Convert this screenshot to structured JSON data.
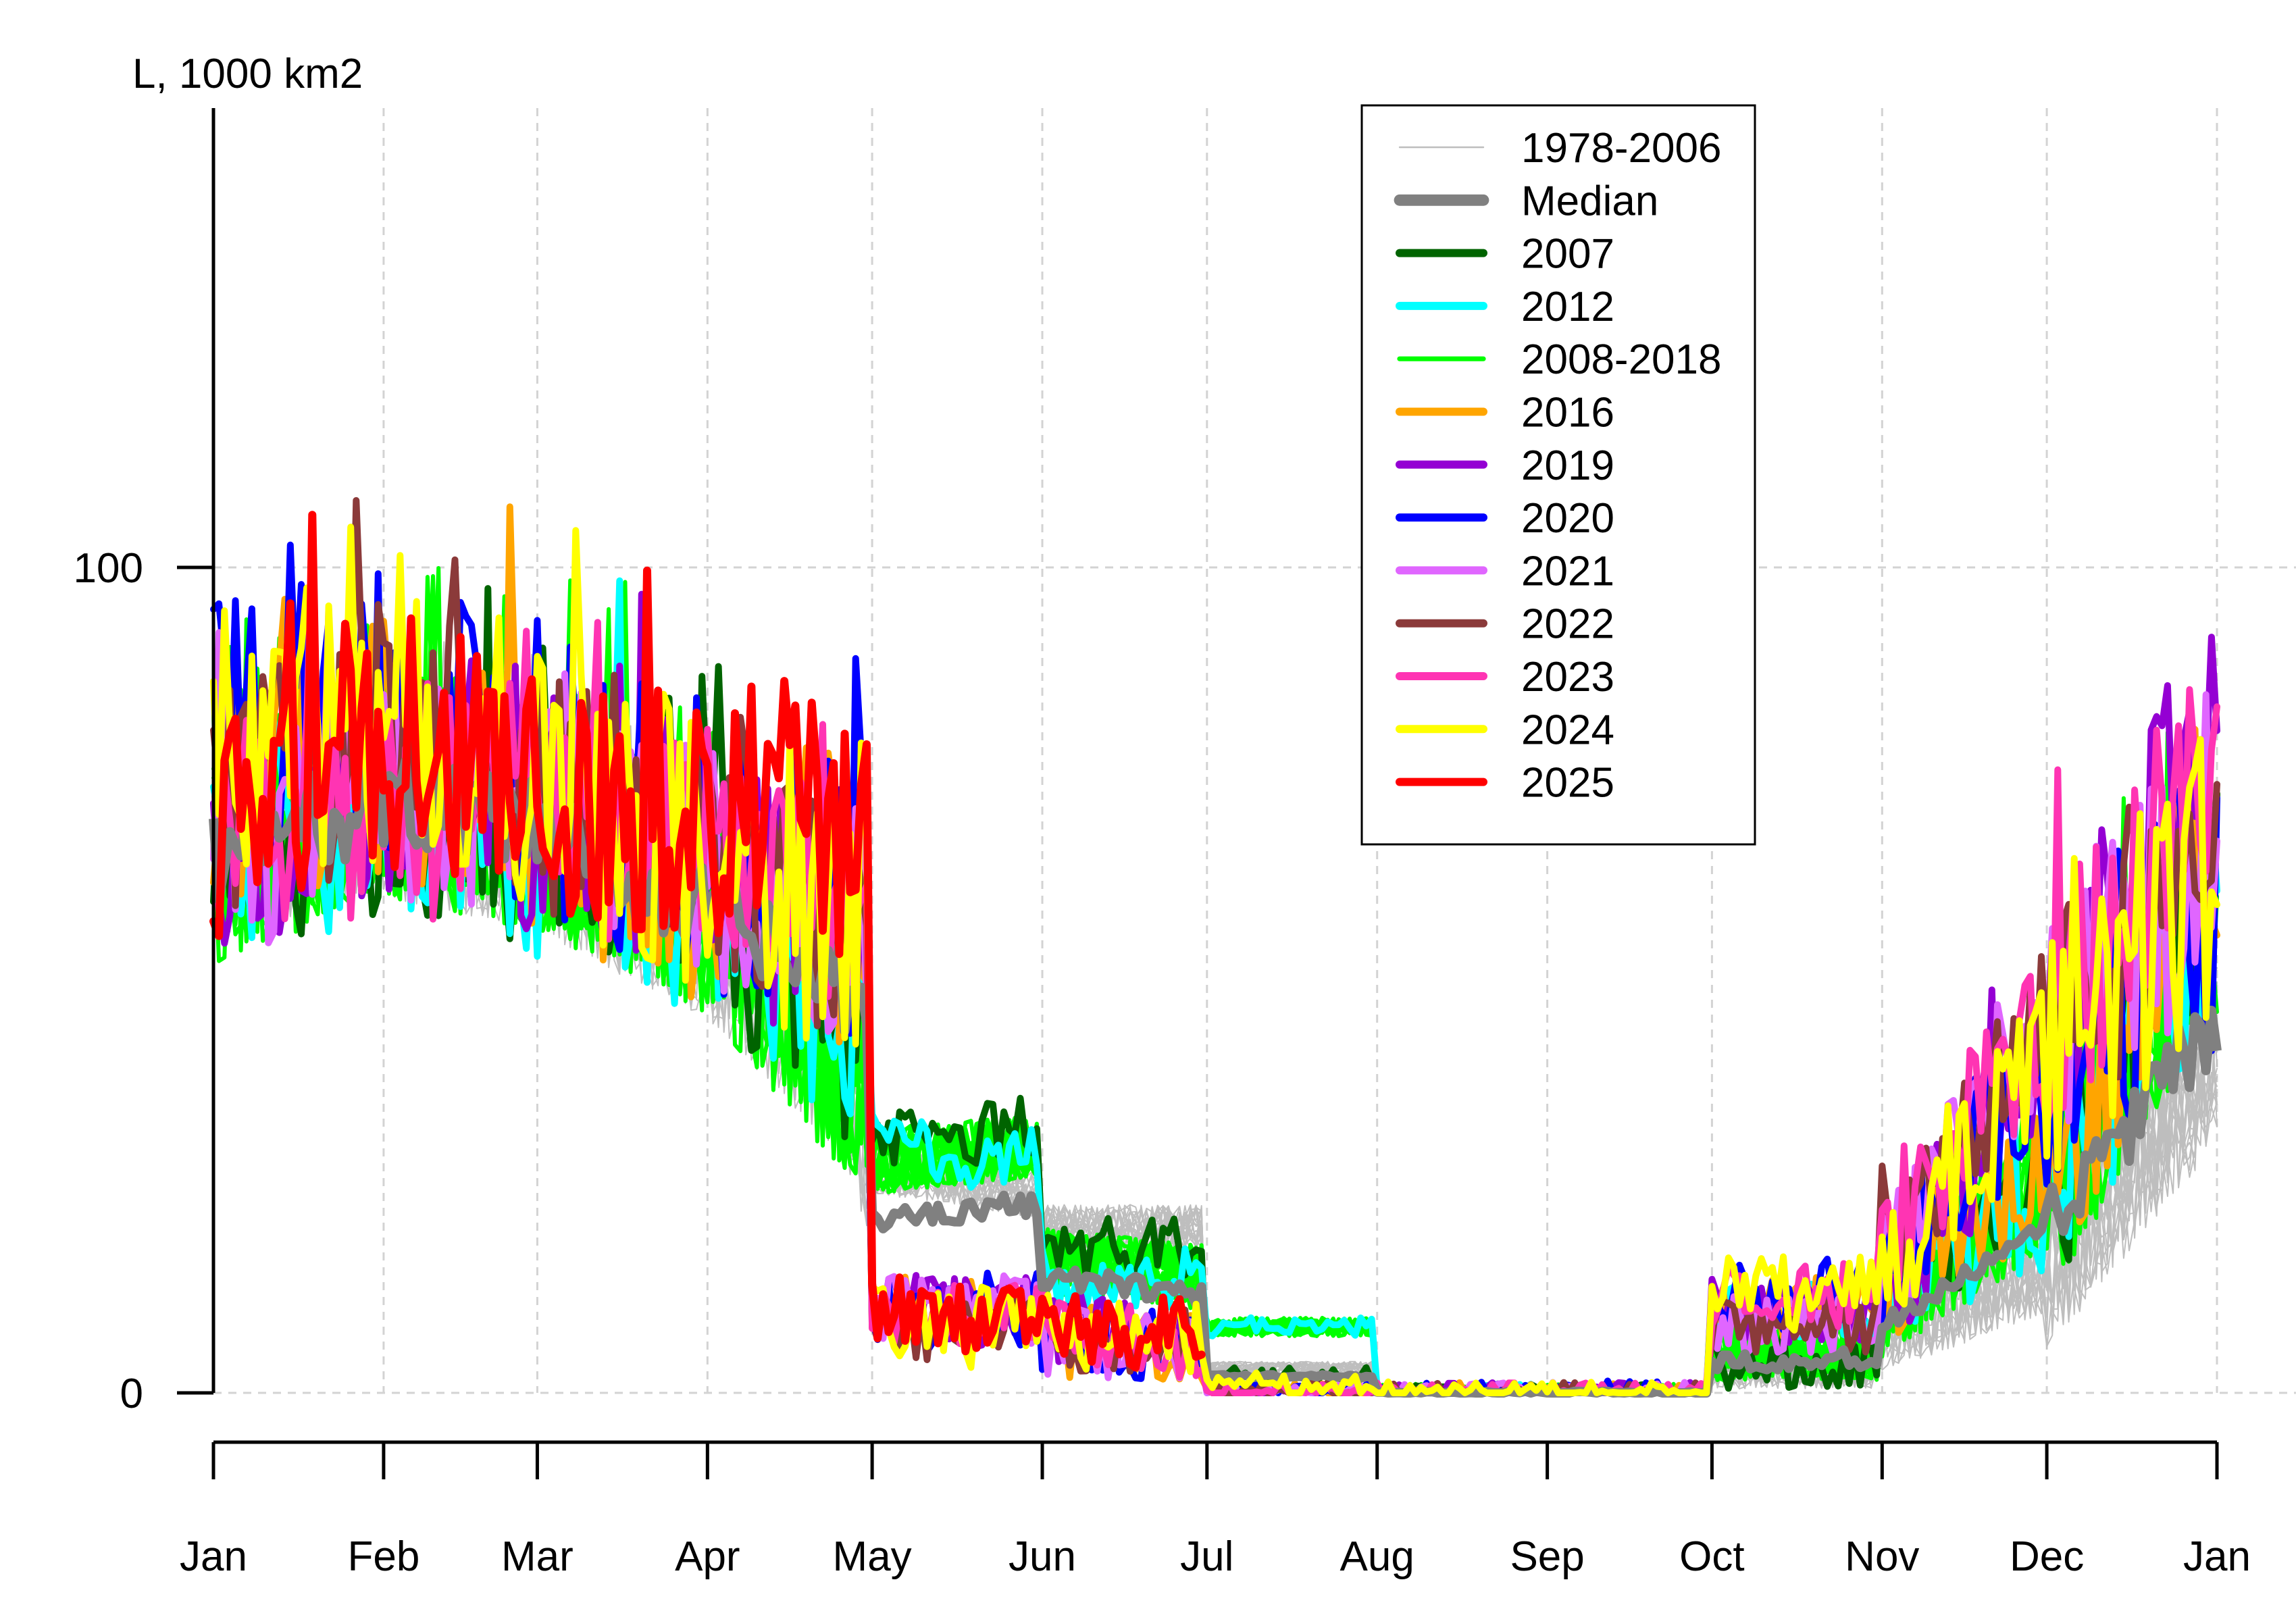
{
  "chart_data": {
    "type": "line",
    "ylabel": "L, 1000 km2",
    "xlim": [
      0,
      365
    ],
    "ylim": [
      -5,
      155
    ],
    "grid": true,
    "x_ticks": [
      {
        "label": "Jan",
        "day": 0
      },
      {
        "label": "Feb",
        "day": 31
      },
      {
        "label": "Mar",
        "day": 59
      },
      {
        "label": "Apr",
        "day": 90
      },
      {
        "label": "May",
        "day": 120
      },
      {
        "label": "Jun",
        "day": 151
      },
      {
        "label": "Jul",
        "day": 181
      },
      {
        "label": "Aug",
        "day": 212
      },
      {
        "label": "Sep",
        "day": 243
      },
      {
        "label": "Oct",
        "day": 273
      },
      {
        "label": "Nov",
        "day": 304
      },
      {
        "label": "Dec",
        "day": 334
      },
      {
        "label": "Jan",
        "day": 365
      }
    ],
    "y_ticks": [
      0,
      100
    ],
    "legend_position": "top-center",
    "legend": [
      {
        "label": "1978-2006",
        "color": "#bebebe",
        "width": 2
      },
      {
        "label": "Median",
        "color": "#808080",
        "width": 14
      },
      {
        "label": "2007",
        "color": "#006400",
        "width": 10
      },
      {
        "label": "2012",
        "color": "#00ffff",
        "width": 10
      },
      {
        "label": "2008-2018",
        "color": "#00ff00",
        "width": 6
      },
      {
        "label": "2016",
        "color": "#ffa500",
        "width": 10
      },
      {
        "label": "2019",
        "color": "#9400d3",
        "width": 10
      },
      {
        "label": "2020",
        "color": "#0000ff",
        "width": 10
      },
      {
        "label": "2021",
        "color": "#e066ff",
        "width": 10
      },
      {
        "label": "2022",
        "color": "#8b3a3a",
        "width": 10
      },
      {
        "label": "2023",
        "color": "#ff34b3",
        "width": 10
      },
      {
        "label": "2024",
        "color": "#ffff00",
        "width": 10
      },
      {
        "label": "2025",
        "color": "#ff0000",
        "width": 10
      }
    ],
    "series": [
      {
        "legend": "1978-2006",
        "color": "#bebebe",
        "width": 2,
        "copies": 20,
        "profile": [
          [
            0,
            65
          ],
          [
            31,
            70
          ],
          [
            59,
            66
          ],
          [
            90,
            55
          ],
          [
            115,
            38
          ],
          [
            119,
            30
          ],
          [
            120,
            27
          ],
          [
            150,
            24
          ],
          [
            151,
            20
          ],
          [
            180,
            20
          ],
          [
            181,
            3
          ],
          [
            211,
            3
          ],
          [
            212,
            0
          ],
          [
            272,
            0
          ],
          [
            273,
            3
          ],
          [
            303,
            3
          ],
          [
            304,
            8
          ],
          [
            334,
            15
          ],
          [
            365,
            40
          ]
        ],
        "noise": 10
      },
      {
        "legend": "2008-2018",
        "color": "#00ff00",
        "width": 6,
        "copies": 11,
        "profile": [
          [
            0,
            66
          ],
          [
            31,
            74
          ],
          [
            59,
            70
          ],
          [
            90,
            60
          ],
          [
            115,
            40
          ],
          [
            119,
            38
          ],
          [
            120,
            28
          ],
          [
            150,
            30
          ],
          [
            151,
            16
          ],
          [
            180,
            14
          ],
          [
            181,
            8
          ],
          [
            211,
            8
          ],
          [
            212,
            0
          ],
          [
            272,
            0
          ],
          [
            273,
            5
          ],
          [
            303,
            5
          ],
          [
            304,
            12
          ],
          [
            334,
            25
          ],
          [
            365,
            60
          ]
        ],
        "noise": 14
      },
      {
        "legend": "2007",
        "color": "#006400",
        "width": 10,
        "profile": [
          [
            0,
            66
          ],
          [
            31,
            72
          ],
          [
            59,
            68
          ],
          [
            90,
            60
          ],
          [
            115,
            45
          ],
          [
            119,
            42
          ],
          [
            120,
            30
          ],
          [
            150,
            32
          ],
          [
            151,
            17
          ],
          [
            180,
            18
          ],
          [
            181,
            2
          ],
          [
            211,
            2
          ],
          [
            212,
            0
          ],
          [
            272,
            0
          ],
          [
            273,
            4
          ],
          [
            303,
            4
          ],
          [
            304,
            16
          ],
          [
            334,
            25
          ],
          [
            365,
            60
          ]
        ],
        "noise": 14
      },
      {
        "legend": "2012",
        "color": "#00ffff",
        "width": 10,
        "profile": [
          [
            0,
            68
          ],
          [
            31,
            70
          ],
          [
            59,
            66
          ],
          [
            90,
            60
          ],
          [
            115,
            46
          ],
          [
            119,
            44
          ],
          [
            120,
            30
          ],
          [
            150,
            28
          ],
          [
            151,
            14
          ],
          [
            180,
            14
          ],
          [
            181,
            8
          ],
          [
            211,
            8
          ],
          [
            212,
            0
          ],
          [
            272,
            0
          ],
          [
            273,
            10
          ],
          [
            303,
            10
          ],
          [
            304,
            14
          ],
          [
            334,
            22
          ],
          [
            365,
            60
          ]
        ],
        "noise": 14
      },
      {
        "legend": "2016",
        "color": "#ffa500",
        "width": 10,
        "profile": [
          [
            0,
            74
          ],
          [
            31,
            78
          ],
          [
            59,
            72
          ],
          [
            90,
            62
          ],
          [
            115,
            55
          ],
          [
            119,
            52
          ],
          [
            120,
            10
          ],
          [
            150,
            10
          ],
          [
            151,
            6
          ],
          [
            180,
            6
          ],
          [
            181,
            0
          ],
          [
            211,
            0
          ],
          [
            212,
            0
          ],
          [
            272,
            0
          ],
          [
            273,
            10
          ],
          [
            303,
            10
          ],
          [
            304,
            14
          ],
          [
            334,
            28
          ],
          [
            365,
            70
          ]
        ],
        "noise": 16
      },
      {
        "legend": "2019",
        "color": "#9400d3",
        "width": 10,
        "profile": [
          [
            0,
            70
          ],
          [
            31,
            74
          ],
          [
            59,
            72
          ],
          [
            90,
            65
          ],
          [
            115,
            55
          ],
          [
            119,
            52
          ],
          [
            120,
            10
          ],
          [
            150,
            10
          ],
          [
            151,
            8
          ],
          [
            180,
            6
          ],
          [
            181,
            0
          ],
          [
            211,
            0
          ],
          [
            212,
            0
          ],
          [
            272,
            0
          ],
          [
            273,
            10
          ],
          [
            303,
            10
          ],
          [
            304,
            12
          ],
          [
            334,
            40
          ],
          [
            365,
            85
          ]
        ],
        "noise": 16
      },
      {
        "legend": "2020",
        "color": "#0000ff",
        "width": 10,
        "profile": [
          [
            0,
            78
          ],
          [
            31,
            84
          ],
          [
            59,
            76
          ],
          [
            90,
            66
          ],
          [
            115,
            58
          ],
          [
            119,
            62
          ],
          [
            120,
            10
          ],
          [
            150,
            10
          ],
          [
            151,
            6
          ],
          [
            180,
            6
          ],
          [
            181,
            0
          ],
          [
            211,
            0
          ],
          [
            212,
            0
          ],
          [
            272,
            0
          ],
          [
            273,
            12
          ],
          [
            303,
            12
          ],
          [
            304,
            18
          ],
          [
            334,
            40
          ],
          [
            365,
            60
          ]
        ],
        "noise": 18
      },
      {
        "legend": "2021",
        "color": "#e066ff",
        "width": 10,
        "profile": [
          [
            0,
            68
          ],
          [
            31,
            75
          ],
          [
            59,
            74
          ],
          [
            90,
            62
          ],
          [
            115,
            58
          ],
          [
            119,
            62
          ],
          [
            120,
            10
          ],
          [
            150,
            10
          ],
          [
            151,
            6
          ],
          [
            180,
            6
          ],
          [
            181,
            0
          ],
          [
            211,
            0
          ],
          [
            212,
            0
          ],
          [
            272,
            0
          ],
          [
            273,
            8
          ],
          [
            303,
            8
          ],
          [
            304,
            14
          ],
          [
            334,
            45
          ],
          [
            365,
            65
          ]
        ],
        "noise": 16
      },
      {
        "legend": "2022",
        "color": "#8b3a3a",
        "width": 10,
        "profile": [
          [
            0,
            70
          ],
          [
            31,
            80
          ],
          [
            59,
            74
          ],
          [
            90,
            64
          ],
          [
            115,
            55
          ],
          [
            119,
            55
          ],
          [
            120,
            8
          ],
          [
            150,
            8
          ],
          [
            151,
            6
          ],
          [
            180,
            6
          ],
          [
            181,
            0
          ],
          [
            211,
            0
          ],
          [
            212,
            0
          ],
          [
            272,
            0
          ],
          [
            273,
            8
          ],
          [
            303,
            8
          ],
          [
            304,
            18
          ],
          [
            334,
            45
          ],
          [
            365,
            60
          ]
        ],
        "noise": 16
      },
      {
        "legend": "2023",
        "color": "#ff34b3",
        "width": 10,
        "profile": [
          [
            0,
            66
          ],
          [
            31,
            74
          ],
          [
            59,
            72
          ],
          [
            90,
            66
          ],
          [
            115,
            62
          ],
          [
            119,
            70
          ],
          [
            120,
            10
          ],
          [
            150,
            10
          ],
          [
            151,
            8
          ],
          [
            180,
            6
          ],
          [
            181,
            0
          ],
          [
            211,
            0
          ],
          [
            212,
            0
          ],
          [
            272,
            0
          ],
          [
            273,
            12
          ],
          [
            303,
            12
          ],
          [
            304,
            18
          ],
          [
            334,
            45
          ],
          [
            365,
            75
          ]
        ],
        "noise": 16
      },
      {
        "legend": "2024",
        "color": "#ffff00",
        "width": 10,
        "profile": [
          [
            0,
            80
          ],
          [
            31,
            82
          ],
          [
            59,
            74
          ],
          [
            90,
            66
          ],
          [
            115,
            58
          ],
          [
            119,
            62
          ],
          [
            120,
            8
          ],
          [
            150,
            8
          ],
          [
            151,
            8
          ],
          [
            180,
            6
          ],
          [
            181,
            1
          ],
          [
            211,
            1
          ],
          [
            212,
            0
          ],
          [
            272,
            0
          ],
          [
            273,
            12
          ],
          [
            303,
            12
          ],
          [
            304,
            16
          ],
          [
            334,
            40
          ],
          [
            365,
            65
          ]
        ],
        "noise": 18
      },
      {
        "legend": "2025",
        "color": "#ff0000",
        "width": 12,
        "end_day": 180,
        "profile": [
          [
            0,
            70
          ],
          [
            31,
            80
          ],
          [
            59,
            74
          ],
          [
            90,
            70
          ],
          [
            115,
            68
          ],
          [
            119,
            70
          ],
          [
            120,
            11
          ],
          [
            150,
            8
          ],
          [
            180,
            7
          ]
        ],
        "noise": 16
      }
    ],
    "median": {
      "legend": "Median",
      "color": "#808080",
      "width": 14,
      "profile": [
        [
          0,
          65
        ],
        [
          31,
          72
        ],
        [
          59,
          68
        ],
        [
          90,
          58
        ],
        [
          115,
          48
        ],
        [
          119,
          46
        ],
        [
          120,
          21
        ],
        [
          150,
          23
        ],
        [
          151,
          14
        ],
        [
          180,
          12
        ],
        [
          181,
          2
        ],
        [
          211,
          2
        ],
        [
          212,
          0
        ],
        [
          272,
          0
        ],
        [
          273,
          4
        ],
        [
          303,
          4
        ],
        [
          304,
          8
        ],
        [
          334,
          20
        ],
        [
          365,
          45
        ]
      ]
    }
  }
}
